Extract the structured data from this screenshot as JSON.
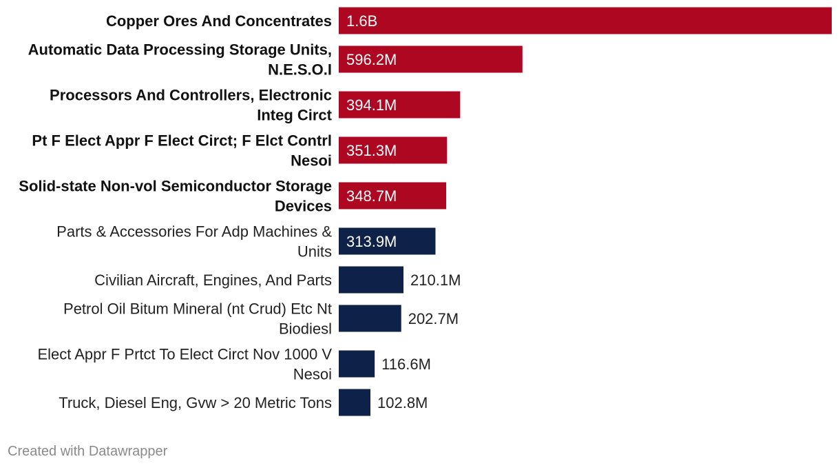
{
  "chart_data": {
    "type": "bar",
    "orientation": "horizontal",
    "categories": [
      [
        "Copper Ores And Concentrates"
      ],
      [
        "Automatic Data Processing Storage Units,",
        "N.E.S.O.I"
      ],
      [
        "Processors And Controllers, Electronic",
        "Integ Circt"
      ],
      [
        "Pt F Elect Appr F Elect Circt; F Elct Contrl",
        "Nesoi"
      ],
      [
        "Solid-state Non-vol Semiconductor Storage",
        "Devices"
      ],
      [
        "Parts & Accessories For Adp Machines &",
        "Units"
      ],
      [
        "Civilian Aircraft, Engines, And Parts"
      ],
      [
        "Petrol Oil Bitum Mineral (nt Crud) Etc Nt",
        "Biodiesl"
      ],
      [
        "Elect Appr F Prtct To Elect Circt Nov 1000 V",
        "Nesoi"
      ],
      [
        "Truck, Diesel Eng, Gvw > 20 Metric Tons"
      ]
    ],
    "values": [
      1600000000,
      596200000,
      394100000,
      351300000,
      348700000,
      313900000,
      210100000,
      202700000,
      116600000,
      102800000
    ],
    "value_labels": [
      "1.6B",
      "596.2M",
      "394.1M",
      "351.3M",
      "348.7M",
      "313.9M",
      "210.1M",
      "202.7M",
      "116.6M",
      "102.8M"
    ],
    "highlighted": [
      true,
      true,
      true,
      true,
      true,
      false,
      false,
      false,
      false,
      false
    ],
    "colors": {
      "highlight": "#ae0721",
      "default": "#0d2149"
    },
    "xlim": [
      0,
      1600000000
    ],
    "grid": false,
    "legend": "none"
  },
  "footer": {
    "credit": "Created with Datawrapper"
  }
}
